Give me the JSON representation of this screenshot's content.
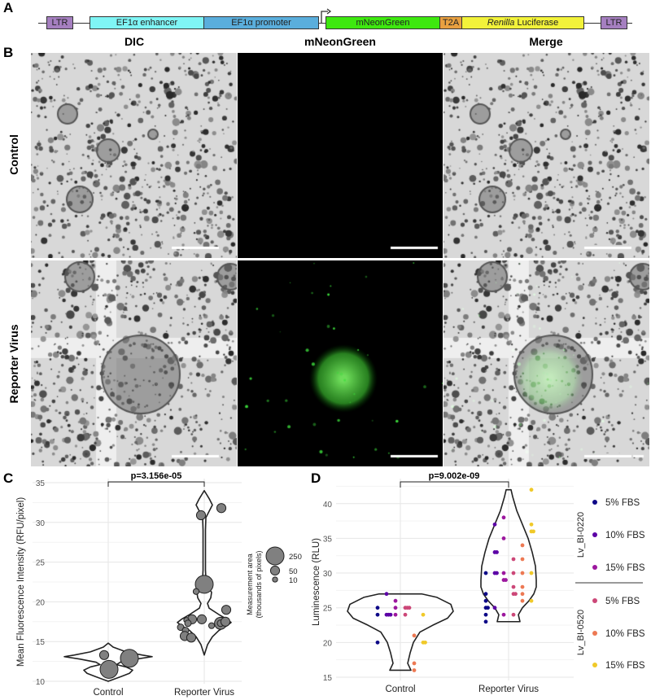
{
  "panel_labels": [
    "A",
    "B",
    "C",
    "D"
  ],
  "construct": {
    "elements": [
      {
        "label": "LTR",
        "color": "#a57fc0"
      },
      {
        "label": "EF1α enhancer",
        "color": "#7ff5f5"
      },
      {
        "label": "EF1α promoter",
        "color": "#5aaedc"
      },
      {
        "label": "mNeonGreen",
        "color": "#3ee80f"
      },
      {
        "label": "T2A",
        "color": "#e8a040"
      },
      {
        "label_italic": "Renilla",
        "label": " Luciferase",
        "color": "#f2f23a"
      },
      {
        "label": "LTR",
        "color": "#a57fc0"
      }
    ],
    "promoter_arrow_icon": "transcription-start-arrow"
  },
  "microscopy": {
    "columns": [
      "DIC",
      "mNeonGreen",
      "Merge"
    ],
    "rows": [
      "Control",
      "Reporter Virus"
    ]
  },
  "chart_data": [
    {
      "type": "violin",
      "panel": "C",
      "ylabel": "Mean Fluorescence Intensity (RFU/pixel)",
      "categories": [
        "Control",
        "Reporter Virus"
      ],
      "ylim": [
        10,
        35
      ],
      "yticks": [
        10,
        15,
        20,
        25,
        30,
        35
      ],
      "grid": true,
      "annotation": "p=3.156e-05",
      "size_legend": {
        "title": "Measurement area\n(thousands of pixels)",
        "title_lines": [
          "Measurement area",
          "(thousands of pixels)"
        ],
        "values": [
          250,
          50,
          10
        ],
        "labels": [
          "250",
          "50",
          "10"
        ],
        "placement": "right"
      },
      "point_color": "#808080",
      "points": [
        {
          "group": "Control",
          "y": 13.3,
          "size": 50
        },
        {
          "group": "Control",
          "y": 11.5,
          "size": 250
        },
        {
          "group": "Control",
          "y": 12.9,
          "size": 250
        },
        {
          "group": "Reporter Virus",
          "y": 30.9,
          "size": 50
        },
        {
          "group": "Reporter Virus",
          "y": 31.8,
          "size": 50
        },
        {
          "group": "Reporter Virus",
          "y": 22.2,
          "size": 250
        },
        {
          "group": "Reporter Virus",
          "y": 21.3,
          "size": 15
        },
        {
          "group": "Reporter Virus",
          "y": 19.0,
          "size": 50
        },
        {
          "group": "Reporter Virus",
          "y": 17.8,
          "size": 50
        },
        {
          "group": "Reporter Virus",
          "y": 17.3,
          "size": 100
        },
        {
          "group": "Reporter Virus",
          "y": 17.8,
          "size": 50
        },
        {
          "group": "Reporter Virus",
          "y": 17.3,
          "size": 20
        },
        {
          "group": "Reporter Virus",
          "y": 17.5,
          "size": 50
        },
        {
          "group": "Reporter Virus",
          "y": 17.0,
          "size": 15
        },
        {
          "group": "Reporter Virus",
          "y": 17.7,
          "size": 10
        },
        {
          "group": "Reporter Virus",
          "y": 17.3,
          "size": 20
        },
        {
          "group": "Reporter Virus",
          "y": 16.8,
          "size": 20
        },
        {
          "group": "Reporter Virus",
          "y": 16.4,
          "size": 20
        },
        {
          "group": "Reporter Virus",
          "y": 15.7,
          "size": 50
        },
        {
          "group": "Reporter Virus",
          "y": 15.5,
          "size": 50
        }
      ]
    },
    {
      "type": "violin",
      "panel": "D",
      "ylabel": "Luminescence (RLU)",
      "categories": [
        "Control",
        "Reporter Virus"
      ],
      "ylim": [
        15,
        42
      ],
      "yticks": [
        15,
        20,
        25,
        30,
        35,
        40
      ],
      "grid": true,
      "annotation": "p=9.002e-09",
      "legend": {
        "placement": "right",
        "groups": [
          {
            "name": "Lv_BI-0220",
            "entries": [
              "5% FBS",
              "10% FBS",
              "15% FBS"
            ]
          },
          {
            "name": "Lv_BI-0520",
            "entries": [
              "5% FBS",
              "10% FBS",
              "15% FBS"
            ]
          }
        ]
      },
      "series": [
        {
          "name": "Lv_BI-0220 5% FBS",
          "color": "#0d0887",
          "Control": [
            25,
            24,
            20
          ],
          "Reporter Virus": [
            30,
            27,
            26,
            25,
            25,
            24,
            23
          ]
        },
        {
          "name": "Lv_BI-0220 10% FBS",
          "color": "#5c01a6",
          "Control": [
            27,
            24,
            24,
            24
          ],
          "Reporter Virus": [
            37,
            33,
            33,
            30,
            30,
            25
          ]
        },
        {
          "name": "Lv_BI-0220 15% FBS",
          "color": "#9c179e",
          "Control": [
            26,
            25,
            24
          ],
          "Reporter Virus": [
            38,
            35,
            30,
            29,
            29,
            24
          ]
        },
        {
          "name": "Lv_BI-0520 5% FBS",
          "color": "#cc4778",
          "Control": [
            25,
            25,
            25,
            24
          ],
          "Reporter Virus": [
            32,
            30,
            28,
            27,
            27,
            24
          ]
        },
        {
          "name": "Lv_BI-0520 10% FBS",
          "color": "#ed7953",
          "Control": [
            21,
            17,
            16
          ],
          "Reporter Virus": [
            34,
            32,
            30,
            28,
            27,
            26
          ]
        },
        {
          "name": "Lv_BI-0520 15% FBS",
          "color": "#f0c929",
          "Control": [
            24,
            20,
            20
          ],
          "Reporter Virus": [
            42,
            37,
            36,
            36,
            30,
            26
          ]
        }
      ]
    }
  ]
}
